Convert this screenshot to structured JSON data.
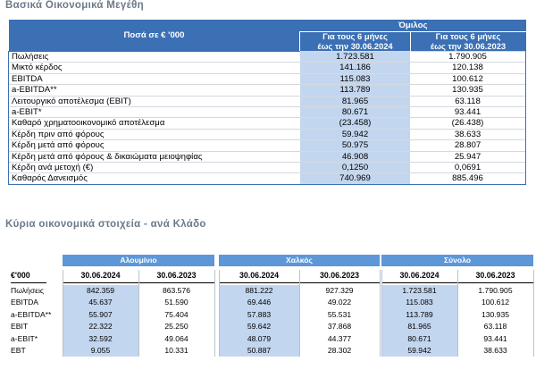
{
  "section1": {
    "title": "Βασικά Οικονομικά Μεγέθη",
    "header_label": "Ποσά  σε € '000",
    "group_label": "Όμιλος",
    "col1": "Για τους 6 μήνες έως την 30.06.2024",
    "col1_line1": "Για τους 6 μήνες",
    "col1_line2": "έως την 30.06.2024",
    "col2_line1": "Για τους 6 μήνες",
    "col2_line2": "έως την 30.06.2023",
    "rows": [
      {
        "label": "Πωλήσεις",
        "v2024": "1.723.581",
        "v2023": "1.790.905"
      },
      {
        "label": "Μικτό κέρδος",
        "v2024": "141.186",
        "v2023": "120.138"
      },
      {
        "label": "EBITDA",
        "v2024": "115.083",
        "v2023": "100.612"
      },
      {
        "label": "a-EBITDA**",
        "v2024": "113.789",
        "v2023": "130.935"
      },
      {
        "label": "Λειτουργικό αποτέλεσμα (EBIT)",
        "v2024": "81.965",
        "v2023": "63.118"
      },
      {
        "label": "a-EBIT*",
        "v2024": "80.671",
        "v2023": "93.441"
      },
      {
        "label": "Καθαρό χρηματοοικονομικό αποτέλεσμα",
        "v2024": "(23.458)",
        "v2023": "(26.438)"
      },
      {
        "label": "Κέρδη πριν από φόρους",
        "v2024": "59.942",
        "v2023": "38.633"
      },
      {
        "label": "Κέρδη μετά από φόρους",
        "v2024": "50.975",
        "v2023": "28.807"
      },
      {
        "label": "Κέρδη μετά από φόρους & δικαιώματα μειοψηφίας",
        "v2024": "46.908",
        "v2023": "25.947"
      },
      {
        "label": "Κέρδη ανά μετοχή (€)",
        "v2024": "0,1250",
        "v2023": "0,0691"
      },
      {
        "label": "Καθαρός Δανεισμός",
        "v2024": "740.969",
        "v2023": "885.496"
      }
    ]
  },
  "section2": {
    "title": "Κύρια οικονομικά στοιχεία - ανά Κλάδο",
    "unit_label": "€'000",
    "groups": [
      "Αλουμίνιο",
      "Χαλκός",
      "Σύνολο"
    ],
    "date1": "30.06.2024",
    "date2": "30.06.2023",
    "rows": [
      {
        "label": "Πωλήσεις",
        "values": [
          "842.359",
          "863.576",
          "881.222",
          "927.329",
          "1.723.581",
          "1.790.905"
        ]
      },
      {
        "label": "EBITDA",
        "values": [
          "45.637",
          "51.590",
          "69.446",
          "49.022",
          "115.083",
          "100.612"
        ]
      },
      {
        "label": "a-EBITDA**",
        "values": [
          "55.907",
          "75.404",
          "57.883",
          "55.531",
          "113.789",
          "130.935"
        ]
      },
      {
        "label": "EBIT",
        "values": [
          "22.322",
          "25.250",
          "59.642",
          "37.868",
          "81.965",
          "63.118"
        ]
      },
      {
        "label": "a-EBIT*",
        "values": [
          "32.592",
          "49.064",
          "48.079",
          "44.377",
          "80.671",
          "93.441"
        ]
      },
      {
        "label": "EBT",
        "values": [
          "9.055",
          "10.331",
          "50.887",
          "28.302",
          "59.942",
          "38.633"
        ]
      }
    ]
  }
}
